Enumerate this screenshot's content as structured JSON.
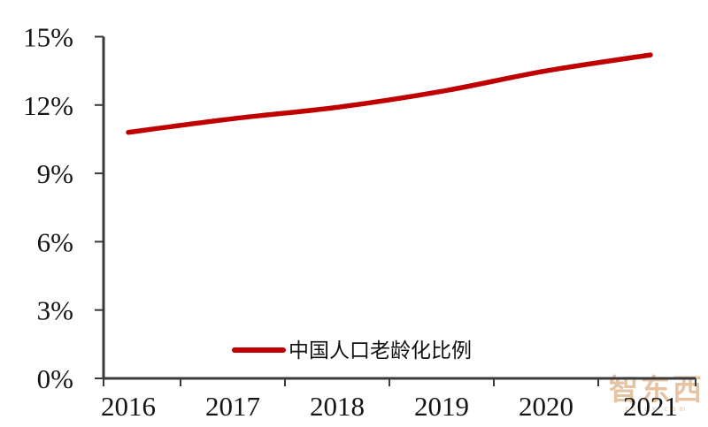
{
  "chart_data": {
    "type": "line",
    "title": "",
    "xlabel": "",
    "ylabel": "",
    "categories": [
      "2016",
      "2017",
      "2018",
      "2019",
      "2020",
      "2021"
    ],
    "series": [
      {
        "name": "中国人口老龄化比例",
        "values": [
          10.8,
          11.4,
          11.9,
          12.6,
          13.5,
          14.2
        ],
        "color": "#C00000",
        "smooth": true
      }
    ],
    "ylim": [
      0,
      15
    ],
    "ytick_labels": [
      "0%",
      "3%",
      "6%",
      "9%",
      "12%",
      "15%"
    ],
    "ytick_values": [
      0,
      3,
      6,
      9,
      12,
      15
    ],
    "grid": false,
    "legend_position": "bottom-center-inside"
  },
  "colors": {
    "line": "#C00000",
    "axis": "#3a3a3a",
    "label": "#141414",
    "background": "#ffffff",
    "watermark": "#e2ba92"
  },
  "watermark": {
    "logo_text": "智东西",
    "sub_text": "zhidx.com"
  }
}
